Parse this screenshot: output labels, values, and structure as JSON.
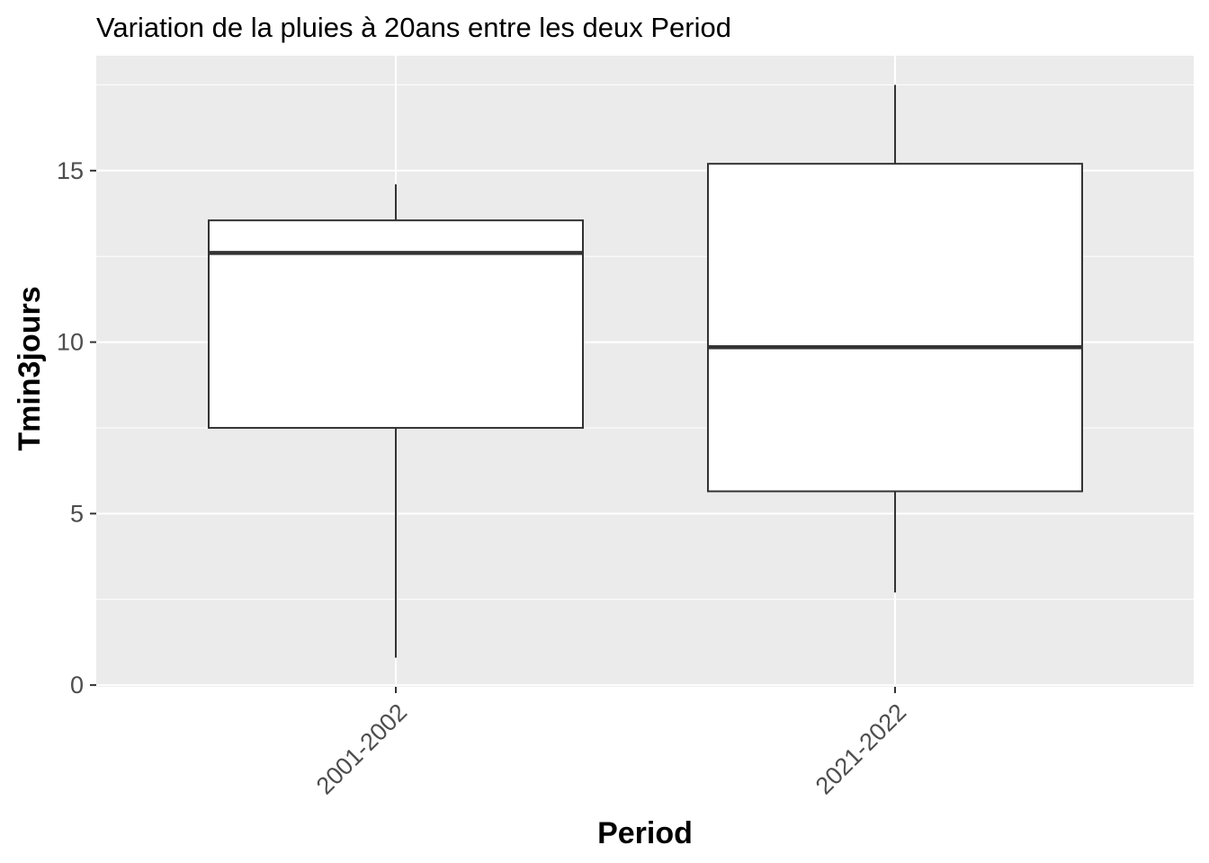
{
  "chart_data": {
    "type": "boxplot",
    "title": "Variation  de la pluies à 20ans entre les deux Period",
    "xlabel": "Period",
    "ylabel": "Tmin3jours",
    "categories": [
      "2001-2002",
      "2021-2022"
    ],
    "boxes": [
      {
        "category": "2001-2002",
        "whisker_low": 0.8,
        "q1": 7.5,
        "median": 12.6,
        "q3": 13.55,
        "whisker_high": 14.6
      },
      {
        "category": "2021-2022",
        "whisker_low": 2.7,
        "q1": 5.65,
        "median": 9.85,
        "q3": 15.2,
        "whisker_high": 17.5
      }
    ],
    "ylim": [
      -0.05,
      18.35
    ],
    "yticks": [
      0,
      5,
      10,
      15
    ],
    "ytick_labels": [
      "0",
      "5",
      "10",
      "15"
    ],
    "grid": true,
    "colors": {
      "panel_background": "#ebebeb",
      "grid": "#ffffff",
      "box_fill": "#ffffff",
      "box_stroke": "#333333",
      "tick": "#333333"
    }
  }
}
